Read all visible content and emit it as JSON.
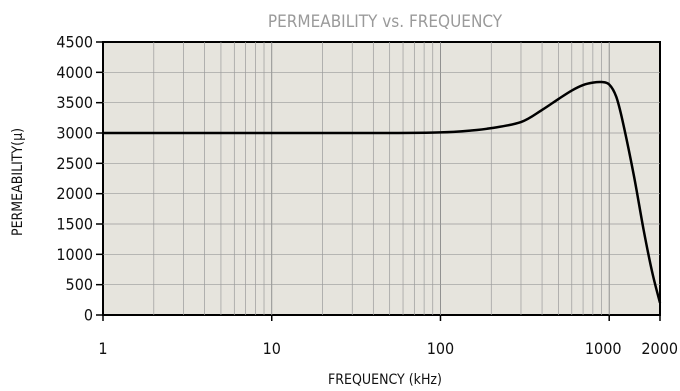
{
  "chart_data": {
    "type": "line",
    "title": "PERMEABILITY vs. FREQUENCY",
    "xlabel": "FREQUENCY (kHz)",
    "ylabel": "PERMEABILITY(µ)",
    "x_scale": "log",
    "xlim": [
      1,
      2000
    ],
    "ylim": [
      0,
      4500
    ],
    "grid": true,
    "x_ticks": [
      1,
      10,
      100,
      1000,
      2000
    ],
    "x_tick_labels": [
      "1",
      "10",
      "100",
      "1000",
      "2000"
    ],
    "y_ticks": [
      0,
      500,
      1000,
      1500,
      2000,
      2500,
      3000,
      3500,
      4000,
      4500
    ],
    "y_tick_labels": [
      "0",
      "500",
      "1000",
      "1500",
      "2000",
      "2500",
      "3000",
      "3500",
      "4000",
      "4500"
    ],
    "series": [
      {
        "color": "#000000",
        "x": [
          1,
          10,
          50,
          100,
          150,
          200,
          300,
          400,
          500,
          600,
          700,
          800,
          900,
          1000,
          1100,
          1200,
          1400,
          1600,
          1800,
          2000
        ],
        "y": [
          3000,
          3000,
          3000,
          3010,
          3040,
          3080,
          3180,
          3380,
          3560,
          3700,
          3790,
          3830,
          3840,
          3800,
          3600,
          3200,
          2300,
          1400,
          700,
          200
        ]
      }
    ]
  }
}
